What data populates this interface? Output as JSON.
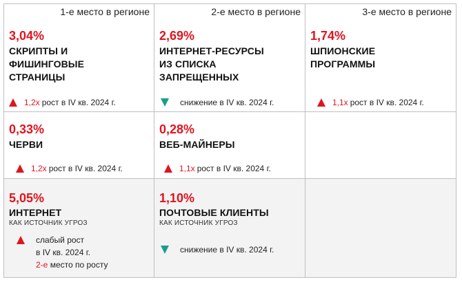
{
  "ranks": [
    "1-е место в регионе",
    "2-е место в регионе",
    "3-е место в регионе"
  ],
  "cells": [
    {
      "pct": "3,04%",
      "title": "СКРИПТЫ И\nФИШИНГОВЫЕ\nСТРАНИЦЫ",
      "trend_mult": "1,2x",
      "trend_text": "рост в IV кв. 2024 г.",
      "direction": "up"
    },
    {
      "pct": "2,69%",
      "title": "ИНТЕРНЕТ-РЕСУРСЫ\nИЗ СПИСКА\nЗАПРЕЩЕННЫХ",
      "trend_text": "снижение в IV кв. 2024 г.",
      "direction": "down"
    },
    {
      "pct": "1,74%",
      "title": "ШПИОНСКИЕ\nПРОГРАММЫ",
      "trend_mult": "1,1x",
      "trend_text": "рост в IV кв. 2024 г.",
      "direction": "up"
    },
    {
      "pct": "0,33%",
      "title": "ЧЕРВИ",
      "trend_mult": "1,2x",
      "trend_text": "рост в IV кв. 2024 г.",
      "direction": "up"
    },
    {
      "pct": "0,28%",
      "title": "ВЕБ-МАЙНЕРЫ",
      "trend_mult": "1,1x",
      "trend_text": "рост в IV кв. 2024 г.",
      "direction": "up"
    },
    {
      "pct": "5,05%",
      "title": "ИНТЕРНЕТ",
      "subtitle": "КАК ИСТОЧНИК УГРОЗ",
      "trend_line1": "слабый рост",
      "trend_line2": "в IV кв. 2024 г.",
      "trend_line3_red": "2-е",
      "trend_line3_rest": "место по росту",
      "direction": "up"
    },
    {
      "pct": "1,10%",
      "title": "ПОЧТОВЫЕ КЛИЕНТЫ",
      "subtitle": "КАК ИСТОЧНИК УГРОЗ",
      "trend_text": "снижение в IV кв. 2024 г.",
      "direction": "down"
    }
  ],
  "colors": {
    "accent": "#e0141e",
    "down": "#1a9e8a",
    "border": "#bfbfbf",
    "shade": "#f3f3f3"
  }
}
